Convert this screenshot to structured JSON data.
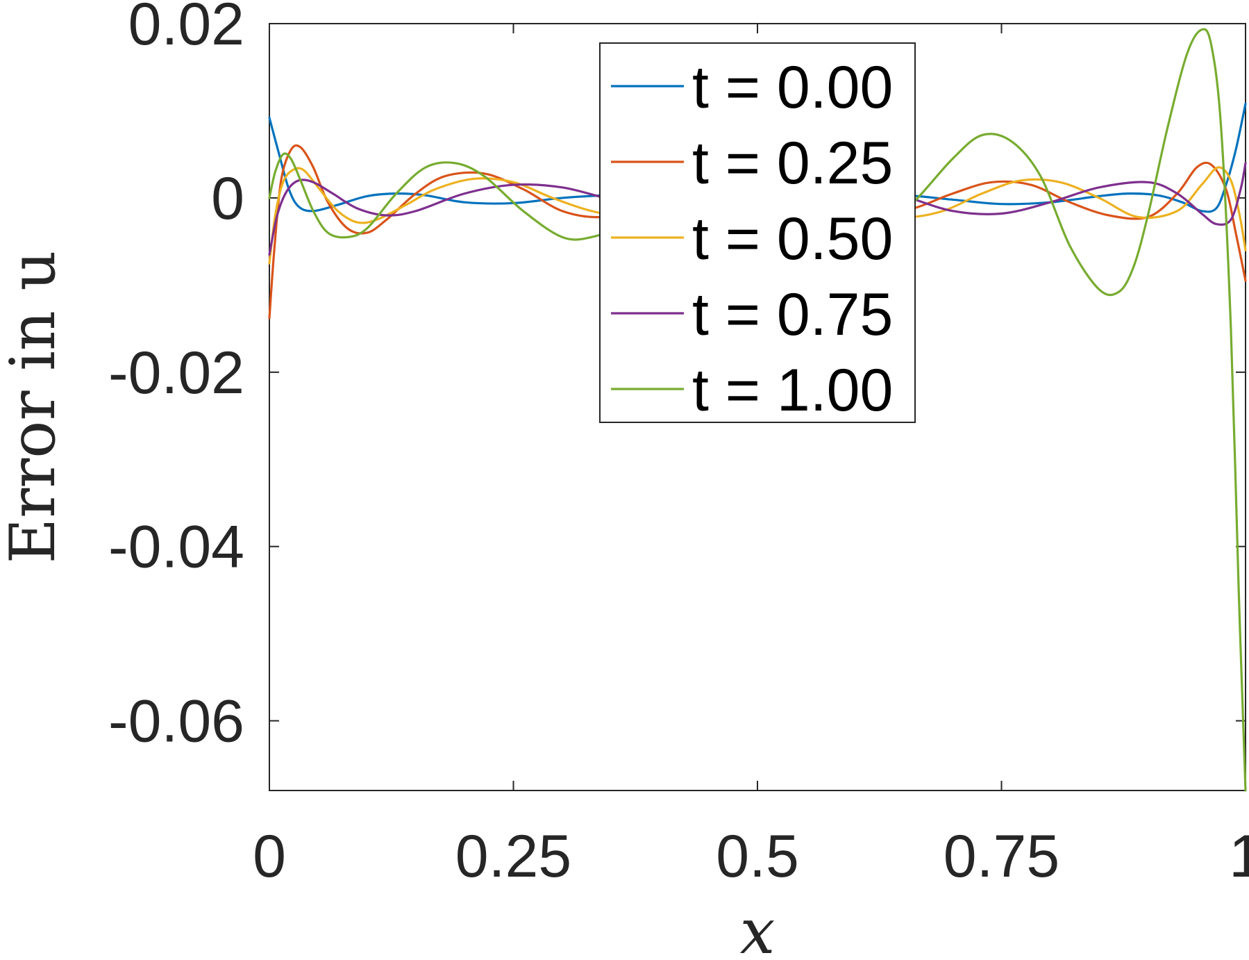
{
  "chart_data": {
    "type": "line",
    "title": "",
    "xlabel": "x",
    "ylabel": "Error in u",
    "xlim": [
      0,
      1
    ],
    "ylim": [
      -0.068,
      0.02
    ],
    "xticks": [
      0,
      0.25,
      0.5,
      0.75,
      1
    ],
    "xtick_labels": [
      "0",
      "0.25",
      "0.5",
      "0.75",
      "1"
    ],
    "yticks": [
      0.02,
      0,
      -0.02,
      -0.04,
      -0.06
    ],
    "ytick_labels": [
      "0.02",
      "0",
      "-0.02",
      "-0.04",
      "-0.06"
    ],
    "grid": false,
    "legend_position": "top-center",
    "series": [
      {
        "name": "t = 0.00",
        "color": "#0072BD",
        "x": [
          0,
          0.01,
          0.02,
          0.03,
          0.045,
          0.07,
          0.1,
          0.13,
          0.16,
          0.2,
          0.25,
          0.3,
          0.35,
          0.4,
          0.45,
          0.5,
          0.55,
          0.6,
          0.65,
          0.7,
          0.75,
          0.8,
          0.85,
          0.88,
          0.91,
          0.935,
          0.955,
          0.97,
          0.98,
          0.99,
          1.0
        ],
        "y": [
          0.0092,
          0.005,
          0.001,
          -0.001,
          -0.0015,
          -0.0008,
          0.0002,
          0.0005,
          0.0003,
          -0.0005,
          -0.0006,
          0.0,
          0.0003,
          0.0002,
          -0.0002,
          -0.0005,
          -0.0003,
          0.0002,
          0.0003,
          -0.0002,
          -0.0007,
          -0.0005,
          0.0002,
          0.0005,
          0.0003,
          -0.0005,
          -0.0015,
          -0.0012,
          0.0015,
          0.0055,
          0.0108
        ]
      },
      {
        "name": "t = 0.25",
        "color": "#D95319",
        "x": [
          0,
          0.005,
          0.012,
          0.022,
          0.032,
          0.045,
          0.06,
          0.08,
          0.1,
          0.12,
          0.15,
          0.18,
          0.22,
          0.26,
          0.3,
          0.34,
          0.38,
          0.42,
          0.46,
          0.5,
          0.54,
          0.58,
          0.62,
          0.66,
          0.7,
          0.74,
          0.78,
          0.82,
          0.86,
          0.9,
          0.93,
          0.95,
          0.965,
          0.98,
          0.99,
          1.0
        ],
        "y": [
          -0.0138,
          -0.006,
          0.002,
          0.0055,
          0.0058,
          0.0035,
          -0.0005,
          -0.0035,
          -0.004,
          -0.0025,
          0.0005,
          0.0025,
          0.0028,
          0.001,
          -0.0015,
          -0.0022,
          -0.0012,
          0.0005,
          0.0015,
          0.0012,
          0.0,
          -0.0015,
          -0.002,
          -0.0012,
          0.0005,
          0.0018,
          0.0015,
          -0.0005,
          -0.002,
          -0.0022,
          0.0005,
          0.0035,
          0.0038,
          0.001,
          -0.004,
          -0.0095
        ]
      },
      {
        "name": "t = 0.50",
        "color": "#EDB120",
        "x": [
          0,
          0.006,
          0.014,
          0.024,
          0.035,
          0.05,
          0.07,
          0.09,
          0.11,
          0.14,
          0.17,
          0.21,
          0.25,
          0.29,
          0.33,
          0.37,
          0.41,
          0.45,
          0.49,
          0.53,
          0.57,
          0.61,
          0.65,
          0.69,
          0.73,
          0.77,
          0.81,
          0.85,
          0.89,
          0.93,
          0.955,
          0.972,
          0.985,
          0.994,
          1.0
        ],
        "y": [
          -0.0075,
          -0.002,
          0.0018,
          0.0032,
          0.0032,
          0.0012,
          -0.0015,
          -0.0028,
          -0.0025,
          -0.0008,
          0.001,
          0.0022,
          0.0018,
          0.0,
          -0.0015,
          -0.0022,
          -0.0012,
          0.0003,
          0.0015,
          0.0015,
          0.0003,
          -0.0012,
          -0.0022,
          -0.0015,
          0.0005,
          0.002,
          0.0018,
          0.0,
          -0.0022,
          -0.0015,
          0.0015,
          0.0035,
          0.002,
          -0.002,
          -0.006
        ]
      },
      {
        "name": "t = 0.75",
        "color": "#7E2F8E",
        "x": [
          0,
          0.008,
          0.018,
          0.03,
          0.045,
          0.065,
          0.09,
          0.12,
          0.15,
          0.2,
          0.25,
          0.3,
          0.35,
          0.4,
          0.45,
          0.5,
          0.55,
          0.6,
          0.65,
          0.7,
          0.75,
          0.8,
          0.85,
          0.9,
          0.93,
          0.955,
          0.97,
          0.985,
          0.995,
          1.0
        ],
        "y": [
          -0.0065,
          -0.002,
          0.0008,
          0.002,
          0.0018,
          0.0005,
          -0.0012,
          -0.002,
          -0.0015,
          0.0005,
          0.0015,
          0.0012,
          -0.0002,
          -0.0015,
          -0.0015,
          -0.0003,
          0.0012,
          0.0015,
          0.0002,
          -0.0015,
          -0.0018,
          -0.0005,
          0.0012,
          0.0018,
          0.0005,
          -0.0018,
          -0.003,
          -0.0025,
          0.001,
          0.004
        ]
      },
      {
        "name": "t = 1.00",
        "color": "#77AC30",
        "x": [
          0,
          0.006,
          0.014,
          0.022,
          0.032,
          0.045,
          0.06,
          0.08,
          0.1,
          0.13,
          0.16,
          0.19,
          0.22,
          0.26,
          0.3,
          0.33,
          0.36,
          0.4,
          0.44,
          0.47,
          0.5,
          0.54,
          0.58,
          0.62,
          0.66,
          0.7,
          0.73,
          0.76,
          0.79,
          0.82,
          0.85,
          0.87,
          0.885,
          0.9,
          0.92,
          0.94,
          0.955,
          0.965,
          0.975,
          0.985,
          0.993,
          1.0
        ],
        "y": [
          0.0,
          0.003,
          0.005,
          0.0045,
          0.002,
          -0.0015,
          -0.004,
          -0.0045,
          -0.0035,
          0.0005,
          0.0035,
          0.004,
          0.0025,
          -0.0015,
          -0.0045,
          -0.0045,
          -0.003,
          0.001,
          0.0042,
          0.0045,
          0.0025,
          -0.0025,
          -0.0055,
          -0.0045,
          -0.0005,
          0.0045,
          0.0072,
          0.0065,
          0.0025,
          -0.0055,
          -0.0105,
          -0.0108,
          -0.008,
          -0.002,
          0.008,
          0.0165,
          0.0193,
          0.0175,
          0.008,
          -0.015,
          -0.045,
          -0.068
        ]
      }
    ]
  }
}
